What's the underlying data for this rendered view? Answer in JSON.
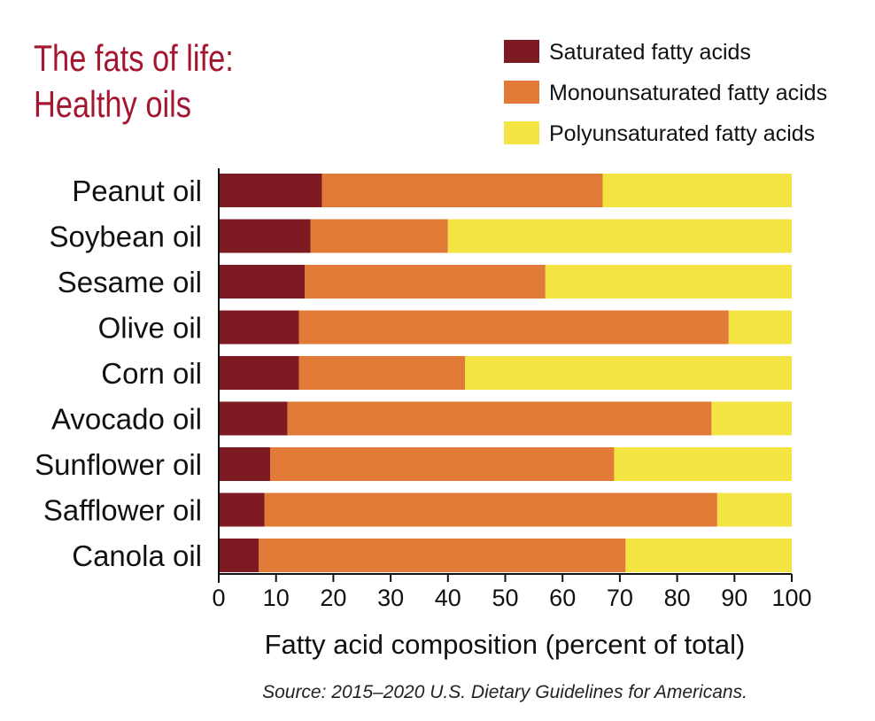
{
  "chart_data": {
    "type": "bar",
    "orientation": "horizontal",
    "stacked": true,
    "title_lines": [
      "The fats of life:",
      "Healthy oils"
    ],
    "categories": [
      "Peanut oil",
      "Soybean oil",
      "Sesame oil",
      "Olive oil",
      "Corn oil",
      "Avocado oil",
      "Sunflower oil",
      "Safflower oil",
      "Canola oil"
    ],
    "series": [
      {
        "name": "Saturated fatty acids",
        "color": "#7d1a22",
        "values": [
          18,
          16,
          15,
          14,
          14,
          12,
          9,
          8,
          7
        ]
      },
      {
        "name": "Monounsaturated fatty acids",
        "color": "#e07a36",
        "values": [
          49,
          24,
          42,
          75,
          29,
          74,
          60,
          79,
          64
        ]
      },
      {
        "name": "Polyunsaturated fatty acids",
        "color": "#f3e343",
        "values": [
          33,
          60,
          43,
          11,
          57,
          14,
          31,
          13,
          29
        ]
      }
    ],
    "xlim": [
      0,
      100
    ],
    "xticks": [
      "0",
      "10",
      "20",
      "30",
      "40",
      "50",
      "60",
      "70",
      "80",
      "90",
      "100"
    ],
    "xlabel": "Fatty acid composition (percent of total)",
    "legend_position": "top-right",
    "source": "Source: 2015–2020 U.S. Dietary Guidelines for Americans."
  }
}
